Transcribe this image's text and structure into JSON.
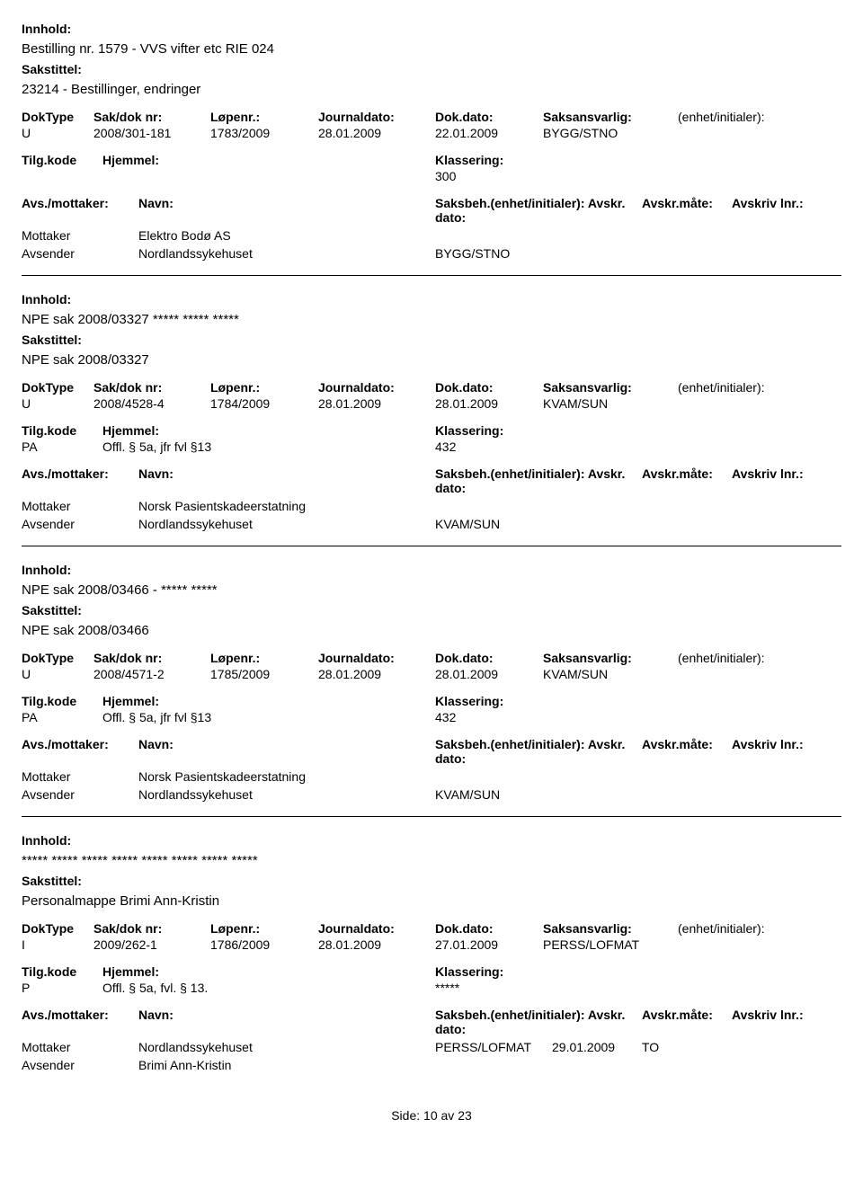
{
  "labels": {
    "innhold": "Innhold:",
    "sakstittel": "Sakstittel:",
    "dokType": "DokType",
    "sakDok": "Sak/dok nr:",
    "lopenr": "Løpenr.:",
    "journaldato": "Journaldato:",
    "dokdato": "Dok.dato:",
    "saksansvarlig": "Saksansvarlig:",
    "enhetInit": "(enhet/initialer):",
    "tilgkode": "Tilg.kode",
    "hjemmel": "Hjemmel:",
    "klassering": "Klassering:",
    "avsmottaker": "Avs./mottaker:",
    "navn": "Navn:",
    "saksbeh": "Saksbeh.(enhet/initialer): Avskr. dato:",
    "avskrmate": "Avskr.måte:",
    "avskrivlnr": "Avskriv lnr.:",
    "mottaker": "Mottaker",
    "avsender": "Avsender",
    "side": "Side:",
    "av": "av"
  },
  "footer": {
    "page": "10",
    "total": "23"
  },
  "records": [
    {
      "innhold": "Bestilling nr. 1579 - VVS vifter etc RIE 024",
      "sakstittel": "23214 - Bestillinger, endringer",
      "dokType": "U",
      "sakDok": "2008/301-181",
      "lopenr": "1783/2009",
      "journaldato": "28.01.2009",
      "dokdato": "22.01.2009",
      "saksansvarlig": "BYGG/STNO",
      "tilgkode": "",
      "hjemmel": "",
      "klassering": "300",
      "parties": [
        {
          "role": "Mottaker",
          "navn": "Elektro Bodø AS",
          "saksbeh": "",
          "avskrdato": "",
          "avskrmate": ""
        },
        {
          "role": "Avsender",
          "navn": "Nordlandssykehuset",
          "saksbeh": "BYGG/STNO",
          "avskrdato": "",
          "avskrmate": ""
        }
      ]
    },
    {
      "innhold": "NPE sak 2008/03327 ***** ***** *****",
      "sakstittel": "NPE sak 2008/03327",
      "dokType": "U",
      "sakDok": "2008/4528-4",
      "lopenr": "1784/2009",
      "journaldato": "28.01.2009",
      "dokdato": "28.01.2009",
      "saksansvarlig": "KVAM/SUN",
      "tilgkode": "PA",
      "hjemmel": "Offl. § 5a, jfr fvl §13",
      "klassering": "432",
      "parties": [
        {
          "role": "Mottaker",
          "navn": "Norsk Pasientskadeerstatning",
          "saksbeh": "",
          "avskrdato": "",
          "avskrmate": ""
        },
        {
          "role": "Avsender",
          "navn": "Nordlandssykehuset",
          "saksbeh": "KVAM/SUN",
          "avskrdato": "",
          "avskrmate": ""
        }
      ]
    },
    {
      "innhold": "NPE sak 2008/03466 - ***** *****",
      "sakstittel": "NPE sak 2008/03466",
      "dokType": "U",
      "sakDok": "2008/4571-2",
      "lopenr": "1785/2009",
      "journaldato": "28.01.2009",
      "dokdato": "28.01.2009",
      "saksansvarlig": "KVAM/SUN",
      "tilgkode": "PA",
      "hjemmel": "Offl. § 5a, jfr fvl §13",
      "klassering": "432",
      "parties": [
        {
          "role": "Mottaker",
          "navn": "Norsk Pasientskadeerstatning",
          "saksbeh": "",
          "avskrdato": "",
          "avskrmate": ""
        },
        {
          "role": "Avsender",
          "navn": "Nordlandssykehuset",
          "saksbeh": "KVAM/SUN",
          "avskrdato": "",
          "avskrmate": ""
        }
      ]
    },
    {
      "innhold": "***** ***** ***** ***** ***** ***** ***** *****",
      "sakstittel": "Personalmappe Brimi Ann-Kristin",
      "dokType": "I",
      "sakDok": "2009/262-1",
      "lopenr": "1786/2009",
      "journaldato": "28.01.2009",
      "dokdato": "27.01.2009",
      "saksansvarlig": "PERSS/LOFMAT",
      "tilgkode": "P",
      "hjemmel": "Offl. § 5a, fvl. § 13.",
      "klassering": "*****",
      "parties": [
        {
          "role": "Mottaker",
          "navn": "Nordlandssykehuset",
          "saksbeh": "PERSS/LOFMAT",
          "avskrdato": "29.01.2009",
          "avskrmate": "TO"
        },
        {
          "role": "Avsender",
          "navn": "Brimi Ann-Kristin",
          "saksbeh": "",
          "avskrdato": "",
          "avskrmate": ""
        }
      ]
    }
  ]
}
